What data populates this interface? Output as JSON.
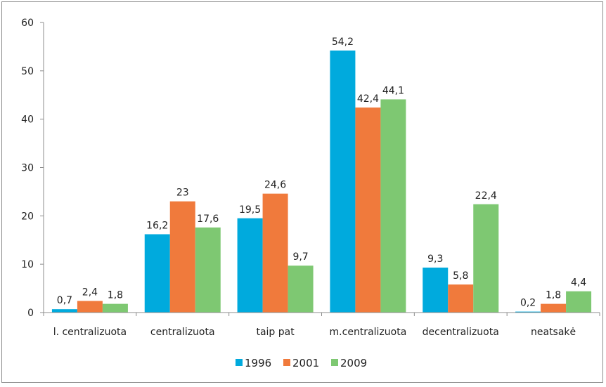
{
  "chart_data": {
    "type": "bar",
    "categories": [
      "l. centralizuota",
      "centralizuota",
      "taip pat",
      "m.centralizuota",
      "decentralizuota",
      "neatsakė"
    ],
    "series": [
      {
        "name": "1996",
        "color": "#00aadd",
        "values": [
          0.7,
          16.2,
          19.5,
          54.2,
          9.3,
          0.2
        ],
        "labels": [
          "0,7",
          "16,2",
          "19,5",
          "54,2",
          "9,3",
          "0,2"
        ]
      },
      {
        "name": "2001",
        "color": "#f07a3c",
        "values": [
          2.4,
          23,
          24.6,
          42.4,
          5.8,
          1.8
        ],
        "labels": [
          "2,4",
          "23",
          "24,6",
          "42,4",
          "5,8",
          "1,8"
        ]
      },
      {
        "name": "2009",
        "color": "#7ec872",
        "values": [
          1.8,
          17.6,
          9.7,
          44.1,
          22.4,
          4.4
        ],
        "labels": [
          "1,8",
          "17,6",
          "9,7",
          "44,1",
          "22,4",
          "4,4"
        ]
      }
    ],
    "ylim": [
      0,
      60
    ],
    "yticks": [
      "0",
      "10",
      "20",
      "30",
      "40",
      "50",
      "60"
    ],
    "grid": false,
    "legend_position": "bottom"
  }
}
